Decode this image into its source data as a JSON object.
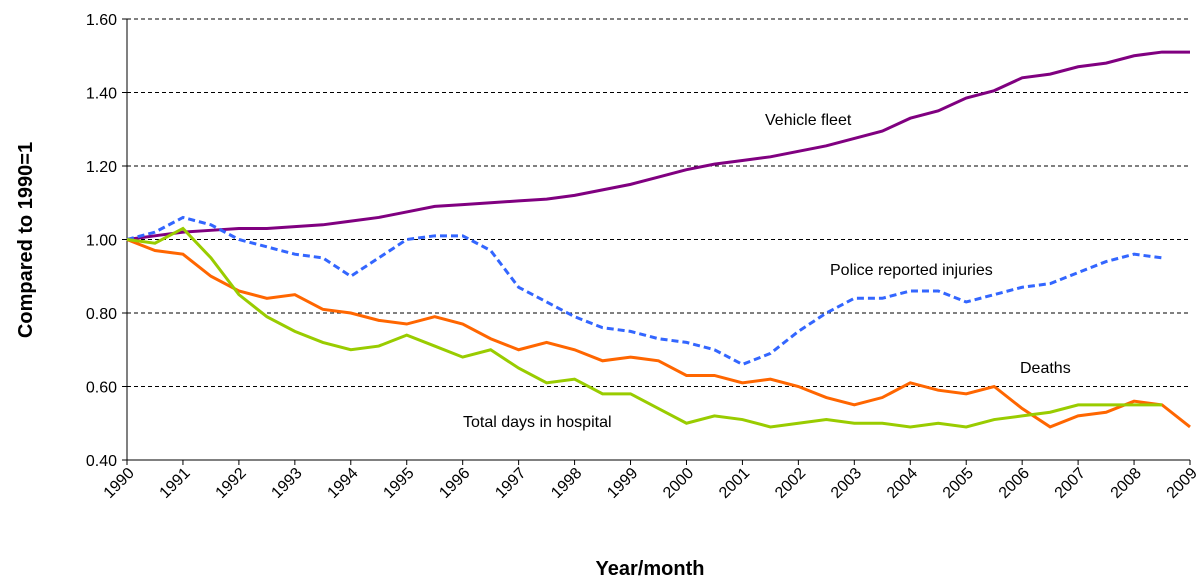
{
  "chart_data": {
    "type": "line",
    "y_label": "Compared to 1990=1",
    "x_label": "Year/month",
    "x": [
      1990,
      1990.5,
      1991,
      1991.5,
      1992,
      1992.5,
      1993,
      1993.5,
      1994,
      1994.5,
      1995,
      1995.5,
      1996,
      1996.5,
      1997,
      1997.5,
      1998,
      1998.5,
      1999,
      1999.5,
      2000,
      2000.5,
      2001,
      2001.5,
      2002,
      2002.5,
      2003,
      2003.5,
      2004,
      2004.5,
      2005,
      2005.5,
      2006,
      2006.5,
      2007,
      2007.5,
      2008,
      2008.5,
      2009
    ],
    "xlim": [
      1990,
      2009
    ],
    "xticks": [
      1990,
      1991,
      1992,
      1993,
      1994,
      1995,
      1996,
      1997,
      1998,
      1999,
      2000,
      2001,
      2002,
      2003,
      2004,
      2005,
      2006,
      2007,
      2008,
      2009
    ],
    "ylim": [
      0.4,
      1.6
    ],
    "yticks": [
      {
        "value": 0.4,
        "label": "0.40"
      },
      {
        "value": 0.6,
        "label": "0.60"
      },
      {
        "value": 0.8,
        "label": "0.80"
      },
      {
        "value": 1.0,
        "label": "1.00"
      },
      {
        "value": 1.2,
        "label": "1.20"
      },
      {
        "value": 1.4,
        "label": "1.40"
      },
      {
        "value": 1.6,
        "label": "1.60"
      }
    ],
    "grid": true,
    "series": [
      {
        "name": "Vehicle fleet",
        "color": "#800080",
        "dashed": false,
        "values": [
          1.0,
          1.01,
          1.02,
          1.025,
          1.03,
          1.03,
          1.035,
          1.04,
          1.05,
          1.06,
          1.075,
          1.09,
          1.095,
          1.1,
          1.105,
          1.11,
          1.12,
          1.135,
          1.15,
          1.17,
          1.19,
          1.205,
          1.215,
          1.225,
          1.24,
          1.255,
          1.275,
          1.295,
          1.33,
          1.35,
          1.385,
          1.405,
          1.44,
          1.45,
          1.47,
          1.48,
          1.5,
          1.51,
          1.51
        ]
      },
      {
        "name": "Police reported injuries",
        "color": "#3366ff",
        "dashed": true,
        "values": [
          1.0,
          1.02,
          1.06,
          1.04,
          1.0,
          0.98,
          0.96,
          0.95,
          0.9,
          0.95,
          1.0,
          1.01,
          1.01,
          0.97,
          0.87,
          0.83,
          0.79,
          0.76,
          0.75,
          0.73,
          0.72,
          0.7,
          0.66,
          0.69,
          0.75,
          0.8,
          0.84,
          0.84,
          0.86,
          0.86,
          0.83,
          0.85,
          0.87,
          0.88,
          0.91,
          0.94,
          0.96,
          0.95,
          null
        ]
      },
      {
        "name": "Deaths",
        "color": "#ff6600",
        "dashed": false,
        "values": [
          1.0,
          0.97,
          0.96,
          0.9,
          0.86,
          0.84,
          0.85,
          0.81,
          0.8,
          0.78,
          0.77,
          0.79,
          0.77,
          0.73,
          0.7,
          0.72,
          0.7,
          0.67,
          0.68,
          0.67,
          0.63,
          0.63,
          0.61,
          0.62,
          0.6,
          0.57,
          0.55,
          0.57,
          0.61,
          0.59,
          0.58,
          0.6,
          0.54,
          0.49,
          0.52,
          0.53,
          0.56,
          0.55,
          0.49
        ]
      },
      {
        "name": "Total days in hospital",
        "color": "#99cc00",
        "dashed": false,
        "values": [
          1.0,
          0.99,
          1.03,
          0.95,
          0.85,
          0.79,
          0.75,
          0.72,
          0.7,
          0.71,
          0.74,
          0.71,
          0.68,
          0.7,
          0.65,
          0.61,
          0.62,
          0.58,
          0.58,
          0.54,
          0.5,
          0.52,
          0.51,
          0.49,
          0.5,
          0.51,
          0.5,
          0.5,
          0.49,
          0.5,
          0.49,
          0.51,
          0.52,
          0.53,
          0.55,
          0.55,
          0.55,
          0.55,
          null
        ]
      }
    ]
  }
}
